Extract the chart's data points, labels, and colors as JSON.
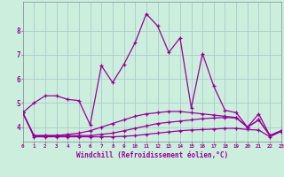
{
  "xlabel": "Windchill (Refroidissement éolien,°C)",
  "bg_color": "#cceedd",
  "grid_color": "#aacccc",
  "line_color": "#990099",
  "x_ticks": [
    0,
    1,
    2,
    3,
    4,
    5,
    6,
    7,
    8,
    9,
    10,
    11,
    12,
    13,
    14,
    15,
    16,
    17,
    18,
    19,
    20,
    21,
    22,
    23
  ],
  "y_ticks": [
    4,
    5,
    6,
    7,
    8
  ],
  "ylim": [
    3.4,
    9.2
  ],
  "xlim": [
    0,
    23
  ],
  "series": [
    [
      4.6,
      5.0,
      5.3,
      5.3,
      5.15,
      5.1,
      4.1,
      6.55,
      5.85,
      6.6,
      7.5,
      8.7,
      8.2,
      7.1,
      7.7,
      4.8,
      7.05,
      5.7,
      4.7,
      4.6,
      4.0,
      4.55,
      3.65,
      3.85
    ],
    [
      4.6,
      3.65,
      3.65,
      3.65,
      3.7,
      3.75,
      3.85,
      4.0,
      4.15,
      4.3,
      4.45,
      4.55,
      4.6,
      4.65,
      4.65,
      4.6,
      4.55,
      4.5,
      4.45,
      4.4,
      4.0,
      4.3,
      3.65,
      3.85
    ],
    [
      4.6,
      3.65,
      3.65,
      3.65,
      3.65,
      3.65,
      3.65,
      3.7,
      3.75,
      3.85,
      3.95,
      4.05,
      4.15,
      4.2,
      4.25,
      4.3,
      4.35,
      4.38,
      4.4,
      4.38,
      4.0,
      4.3,
      3.65,
      3.85
    ],
    [
      4.6,
      3.6,
      3.6,
      3.6,
      3.6,
      3.6,
      3.6,
      3.6,
      3.6,
      3.62,
      3.65,
      3.7,
      3.75,
      3.8,
      3.85,
      3.88,
      3.9,
      3.92,
      3.95,
      3.95,
      3.9,
      3.88,
      3.6,
      3.82
    ]
  ]
}
